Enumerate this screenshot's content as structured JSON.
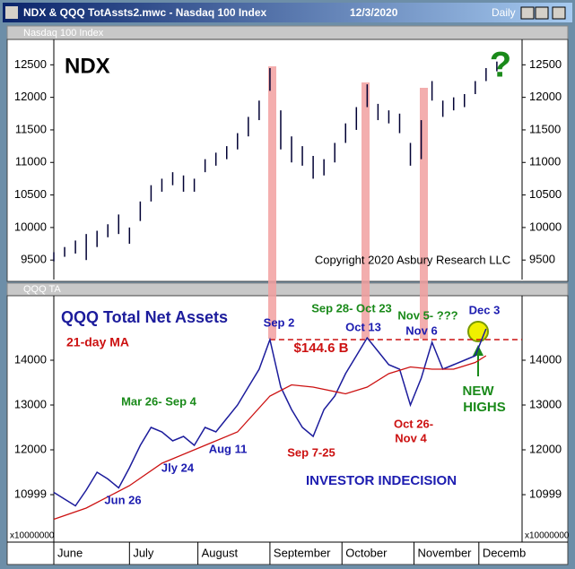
{
  "window": {
    "title": "NDX & QQQ TotAssts2.mwc - Nasdaq 100 Index",
    "date": "12/3/2020",
    "interval": "Daily"
  },
  "chart_data": [
    {
      "type": "range-bar",
      "header": "Nasdaq 100 Index",
      "color": "#000033",
      "x": [
        0,
        3,
        6,
        9,
        12,
        15,
        18,
        21,
        24,
        27,
        30,
        33,
        36,
        39,
        42,
        45,
        48,
        51,
        54,
        57,
        60,
        63,
        66,
        69,
        72,
        75,
        78,
        81,
        84,
        87,
        90,
        93,
        96,
        99,
        102,
        105,
        108,
        111,
        114,
        117,
        120,
        123
      ],
      "high": [
        9620,
        9700,
        9800,
        9900,
        9950,
        10050,
        10200,
        10000,
        10400,
        10650,
        10750,
        10850,
        10800,
        10750,
        11050,
        11150,
        11250,
        11450,
        11700,
        11950,
        12450,
        11800,
        11400,
        11250,
        11100,
        11050,
        11300,
        11600,
        11850,
        12200,
        11900,
        11800,
        11750,
        11300,
        11650,
        12250,
        11950,
        12000,
        12050,
        12250,
        12450,
        12550
      ],
      "low": [
        9480,
        9550,
        9600,
        9500,
        9700,
        9850,
        9900,
        9750,
        10100,
        10400,
        10550,
        10650,
        10550,
        10550,
        10850,
        10950,
        11050,
        11200,
        11400,
        11650,
        12100,
        11200,
        11000,
        10950,
        10750,
        10800,
        11000,
        11300,
        11500,
        11850,
        11650,
        11600,
        11450,
        10950,
        11050,
        11950,
        11700,
        11800,
        11850,
        12050,
        12250,
        12400
      ],
      "xlim": [
        0,
        130
      ],
      "ylim": [
        9200,
        12890
      ],
      "yticks": [
        9500,
        10000,
        10500,
        11000,
        11500,
        12000,
        12500
      ],
      "annotations": [
        {
          "text": "NDX",
          "color": "#000000"
        },
        {
          "text": "?",
          "color": "#1a8a1a"
        },
        {
          "text": "Copyright 2020 Asbury Research LLC",
          "color": "#000000"
        }
      ]
    },
    {
      "type": "line",
      "header": "QQQ TA",
      "y_unit_label": "x10000000",
      "series": [
        {
          "name": "QQQ Total Net Assets",
          "color": "#1c1c9c",
          "x": [
            0,
            3,
            6,
            9,
            12,
            15,
            18,
            21,
            24,
            27,
            30,
            33,
            36,
            39,
            42,
            45,
            48,
            51,
            54,
            57,
            60,
            63,
            66,
            69,
            72,
            75,
            78,
            81,
            84,
            87,
            90,
            93,
            96,
            99,
            102,
            105,
            108,
            111,
            114,
            117,
            120
          ],
          "values": [
            11050,
            10900,
            10750,
            11100,
            11500,
            11350,
            11150,
            11600,
            12100,
            12500,
            12400,
            12200,
            12300,
            12100,
            12500,
            12400,
            12700,
            13000,
            13400,
            13800,
            14460,
            13400,
            12900,
            12500,
            12300,
            12900,
            13200,
            13700,
            14100,
            14500,
            14200,
            13900,
            13800,
            13000,
            13600,
            14400,
            13800,
            13900,
            14000,
            14100,
            14700
          ]
        },
        {
          "name": "21-day MA",
          "color": "#cc1111",
          "x": [
            0,
            9,
            21,
            30,
            42,
            51,
            60,
            66,
            72,
            81,
            87,
            93,
            99,
            105,
            111,
            117,
            120
          ],
          "values": [
            10450,
            10700,
            11200,
            11700,
            12100,
            12400,
            13200,
            13450,
            13400,
            13250,
            13400,
            13700,
            13850,
            13800,
            13800,
            13950,
            14100
          ]
        }
      ],
      "reference_line": 14460,
      "reference_color": "#cc1111",
      "xlim": [
        0,
        130
      ],
      "ylim": [
        9940,
        15440
      ],
      "yticks": [
        10999,
        12000,
        13000,
        14000
      ],
      "xticks": [
        {
          "value": 0,
          "label": "June"
        },
        {
          "value": 21,
          "label": "July"
        },
        {
          "value": 40,
          "label": "August"
        },
        {
          "value": 60,
          "label": "September"
        },
        {
          "value": 80,
          "label": "October"
        },
        {
          "value": 100,
          "label": "November"
        },
        {
          "value": 118,
          "label": "Decemb"
        }
      ],
      "annotations": [
        {
          "text": "$144.6 B",
          "color": "#cc1111"
        },
        {
          "text": "Sep 2",
          "color": "#1c1cb0"
        },
        {
          "text": "Sep 28- Oct 23",
          "color": "#1a8a1a"
        },
        {
          "text": "Oct 13",
          "color": "#1c1cb0"
        },
        {
          "text": "Nov 5- ???",
          "color": "#1a8a1a"
        },
        {
          "text": "Nov 6",
          "color": "#1c1cb0"
        },
        {
          "text": "Dec 3",
          "color": "#1c1cb0"
        },
        {
          "text": "NEW",
          "color": "#1a8a1a"
        },
        {
          "text": "HIGHS",
          "color": "#1a8a1a"
        },
        {
          "text": "Mar 26- Sep 4",
          "color": "#1a8a1a"
        },
        {
          "text": "Aug 11",
          "color": "#1c1cb0"
        },
        {
          "text": "Jly 24",
          "color": "#1c1cb0"
        },
        {
          "text": "Jun 26",
          "color": "#1c1cb0"
        },
        {
          "text": "Sep 7-25",
          "color": "#cc1111"
        },
        {
          "text": "Oct 26-",
          "color": "#cc1111"
        },
        {
          "text": "Nov 4",
          "color": "#cc1111"
        },
        {
          "text": "INVESTOR INDECISION",
          "color": "#1c1cb0"
        }
      ]
    }
  ]
}
